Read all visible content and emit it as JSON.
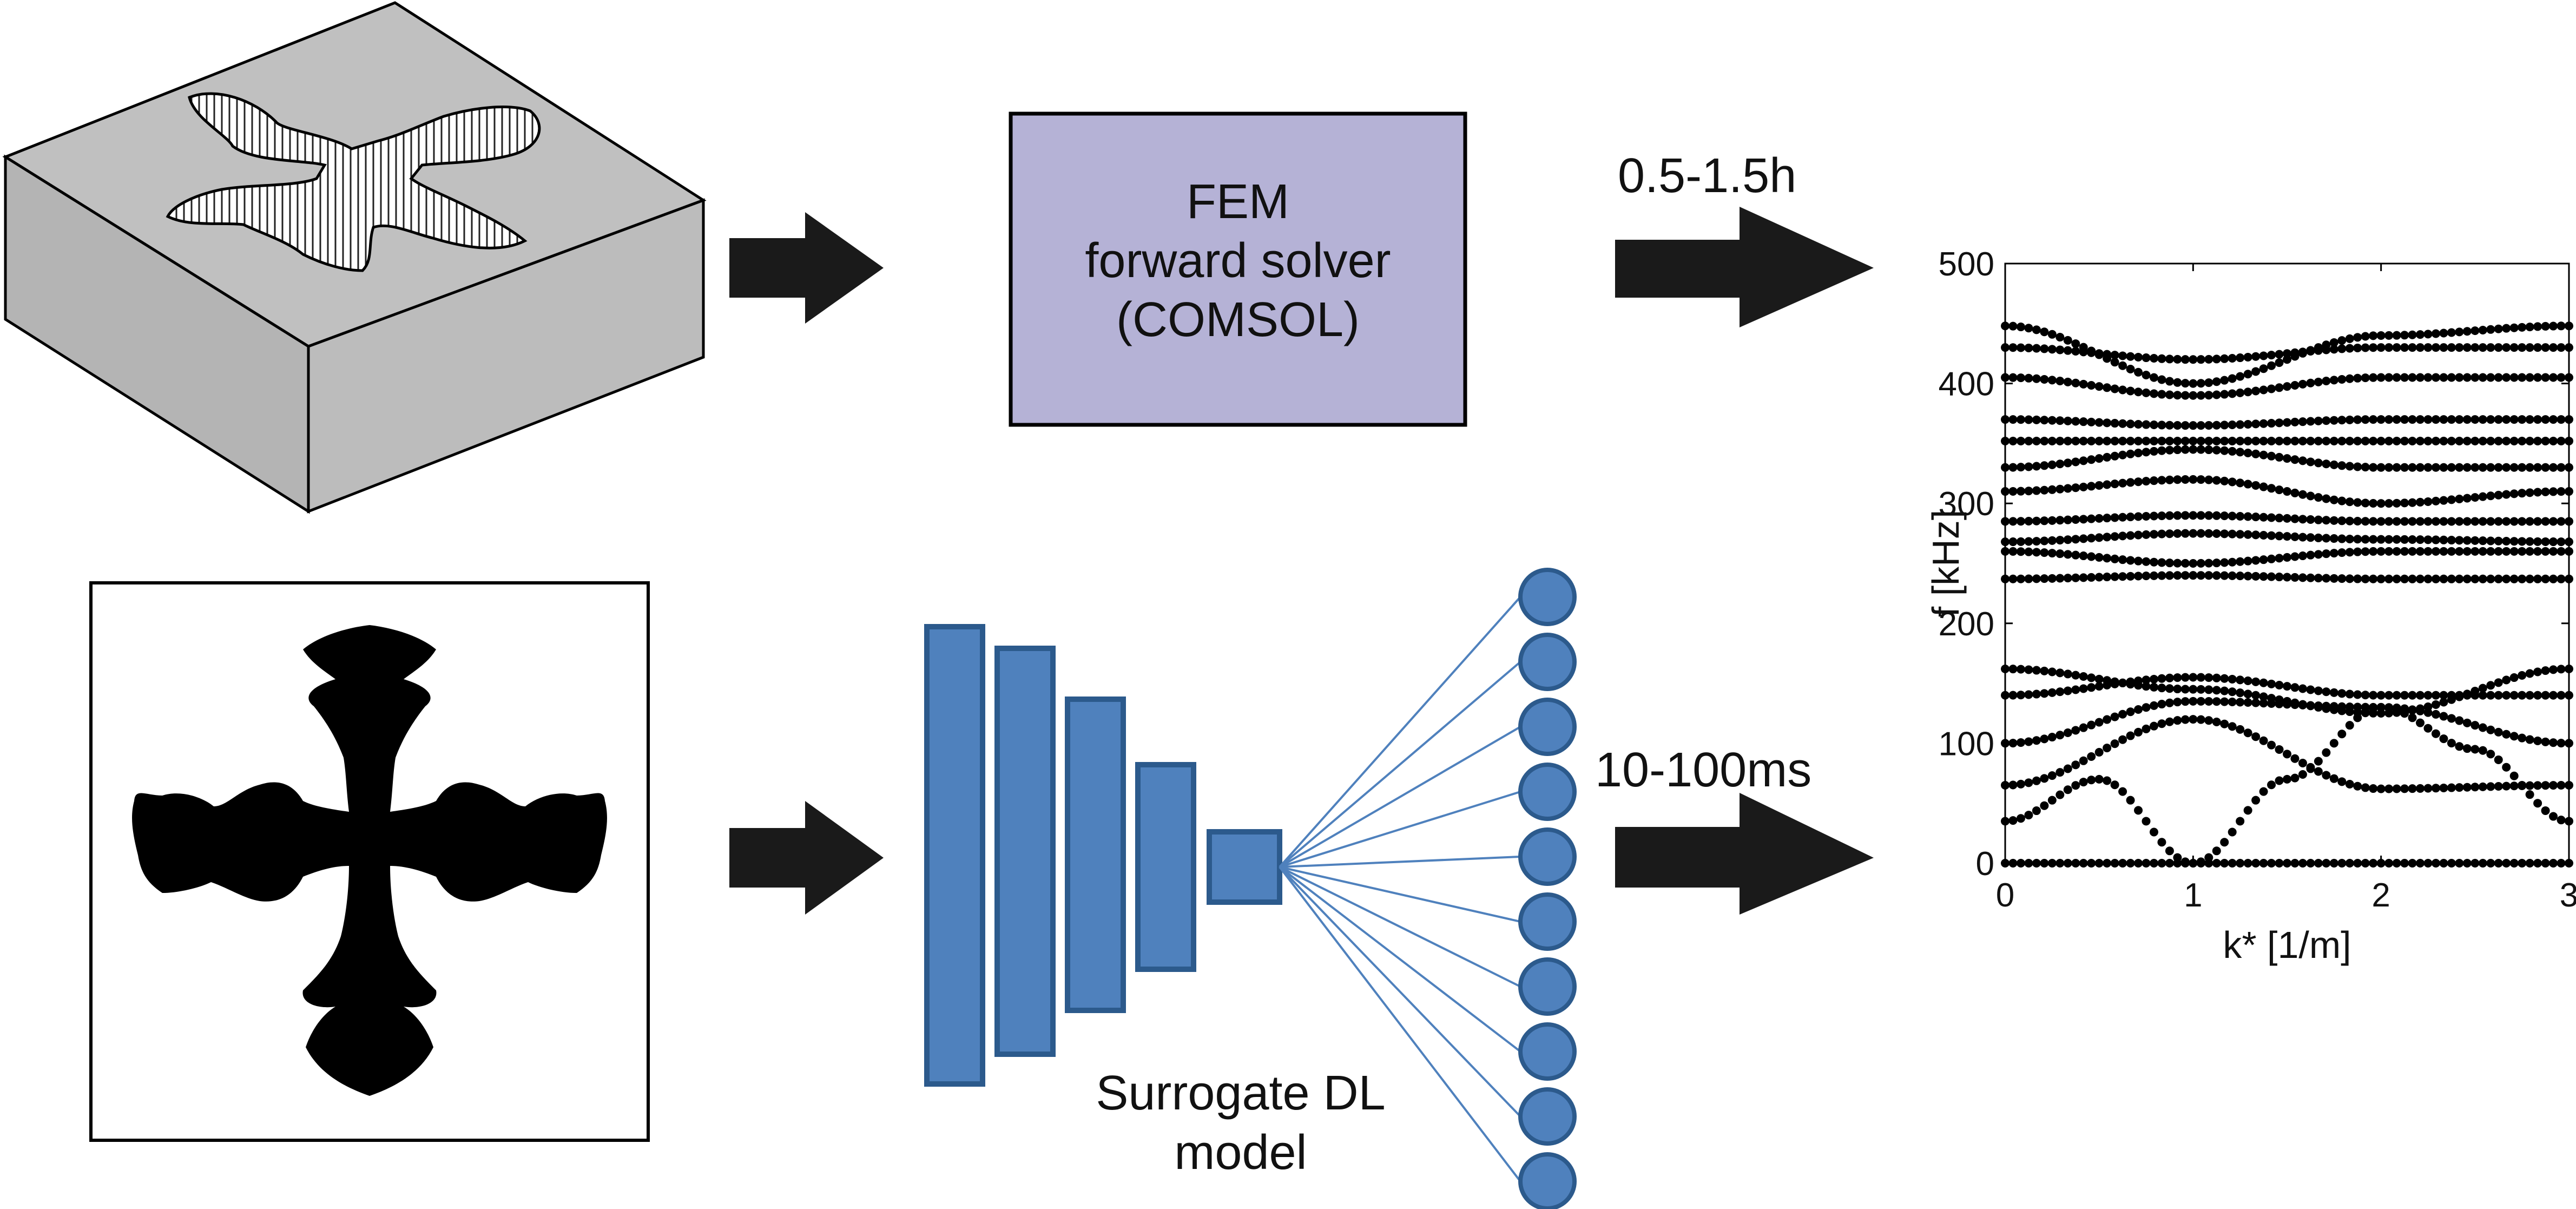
{
  "fem_box": {
    "line1": "FEM",
    "line2": "forward solver",
    "line3": "(COMSOL)",
    "fill": "#b5b2d6"
  },
  "fem_time": "0.5-1.5h",
  "dl_time": "10-100ms",
  "surrogate": {
    "line1": "Surrogate DL",
    "line2": "model",
    "color": "#4f81bd",
    "border": "#2c5a8c",
    "output_nodes": 10
  },
  "colors": {
    "arrow": "#1a1a1a",
    "block": "#c0c0c0",
    "shape": "#000000"
  },
  "chart_data": {
    "type": "scatter",
    "xlabel": "k* [1/m]",
    "ylabel": "f [kHz]",
    "xlim": [
      0,
      3
    ],
    "ylim": [
      0,
      500
    ],
    "xticks": [
      "0",
      "1",
      "2",
      "3"
    ],
    "yticks": [
      "0",
      "100",
      "200",
      "300",
      "400",
      "500"
    ],
    "grid": false,
    "series": [
      {
        "x": [
          0,
          1,
          2,
          3
        ],
        "y": [
          0,
          0,
          0,
          0
        ]
      },
      {
        "x": [
          0,
          0.5,
          1,
          1.5,
          2,
          2.5,
          3
        ],
        "y": [
          35,
          70,
          0,
          70,
          130,
          95,
          35
        ]
      },
      {
        "x": [
          0,
          1,
          2,
          3
        ],
        "y": [
          65,
          120,
          62,
          65
        ]
      },
      {
        "x": [
          0,
          1,
          2,
          3
        ],
        "y": [
          100,
          135,
          130,
          100
        ]
      },
      {
        "x": [
          0,
          1,
          2,
          3
        ],
        "y": [
          140,
          155,
          140,
          140
        ]
      },
      {
        "x": [
          0,
          1,
          2,
          3
        ],
        "y": [
          162,
          145,
          125,
          162
        ]
      },
      {
        "x": [
          0,
          1,
          2,
          3
        ],
        "y": [
          237,
          240,
          237,
          237
        ]
      },
      {
        "x": [
          0,
          1,
          2,
          3
        ],
        "y": [
          260,
          250,
          260,
          260
        ]
      },
      {
        "x": [
          0,
          1,
          2,
          3
        ],
        "y": [
          268,
          275,
          270,
          268
        ]
      },
      {
        "x": [
          0,
          1,
          2,
          3
        ],
        "y": [
          285,
          290,
          285,
          285
        ]
      },
      {
        "x": [
          0,
          1,
          2,
          3
        ],
        "y": [
          310,
          320,
          300,
          310
        ]
      },
      {
        "x": [
          0,
          1,
          2,
          3
        ],
        "y": [
          330,
          345,
          330,
          330
        ]
      },
      {
        "x": [
          0,
          1,
          2,
          3
        ],
        "y": [
          352,
          352,
          352,
          352
        ]
      },
      {
        "x": [
          0,
          1,
          2,
          3
        ],
        "y": [
          370,
          365,
          370,
          370
        ]
      },
      {
        "x": [
          0,
          1,
          2,
          3
        ],
        "y": [
          405,
          390,
          405,
          405
        ]
      },
      {
        "x": [
          0,
          1,
          2,
          3
        ],
        "y": [
          430,
          420,
          430,
          430
        ]
      },
      {
        "x": [
          0,
          1,
          2,
          3
        ],
        "y": [
          448,
          400,
          440,
          448
        ]
      }
    ]
  }
}
